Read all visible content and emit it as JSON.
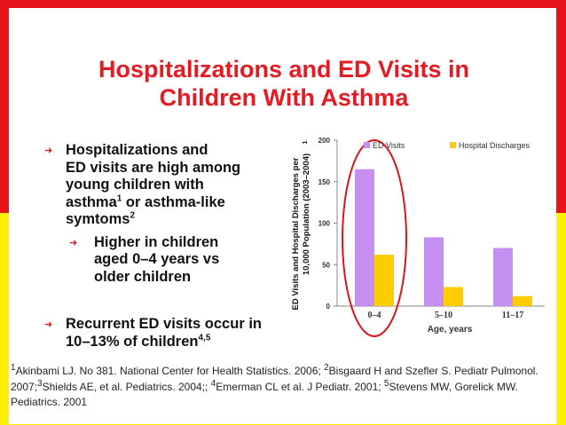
{
  "title_line1": "Hospitalizations and ED Visits in",
  "title_line2": "Children With Asthma",
  "bullets": {
    "b1_a": "Hospitalizations and",
    "b1_b": "ED visits are high among",
    "b1_c": "young children with",
    "b1_d_pre": "asthma",
    "b1_d_sup": "1",
    "b1_d_post": " or asthma-like",
    "b1_e_pre": "symtoms",
    "b1_e_sup": "2",
    "sub_a": "Higher in children",
    "sub_b": "aged 0–4 years vs",
    "sub_c": "older children",
    "b2_a": "Recurrent ED visits occur in",
    "b2_b_pre": "10–13% of children",
    "b2_b_sup": "4,5"
  },
  "footer": {
    "s1": "1",
    "t1": "Akinbami LJ. No 381. National Center for Health Statistics. 2006; ",
    "s2": "2",
    "t2": "Bisgaard H and Szefler S. Pediatr Pulmonol. 2007;",
    "s3": "3",
    "t3": "Shields AE, et al. Pediatrics. 2004;; ",
    "s4": "4",
    "t4": "Emerman CL et al. J Pediatr. 2001; ",
    "s5": "5",
    "t5": "Stevens MW, Gorelick MW. Pediatrics. 2001"
  },
  "colors": {
    "title": "#e31b23",
    "ed": "#c48ff0",
    "hosp": "#ffcc00",
    "circle": "#d8161e"
  },
  "chart_data": {
    "type": "bar",
    "categories": [
      "0–4",
      "5–10",
      "11–17"
    ],
    "series": [
      {
        "name": "ED Visits",
        "values": [
          165,
          83,
          70
        ]
      },
      {
        "name": "Hospital Discharges",
        "values": [
          62,
          23,
          12
        ]
      }
    ],
    "xlabel": "Age, years",
    "ylabel_line1": "ED Visits and Hospital Discharges per",
    "ylabel_line2": "10,000 Population (2003–2004)",
    "ylabel_sup": "1",
    "ylim": [
      0,
      200
    ],
    "yticks": [
      0,
      50,
      100,
      150,
      200
    ],
    "legend_position": "top",
    "highlight": "circle around 0–4 group"
  }
}
